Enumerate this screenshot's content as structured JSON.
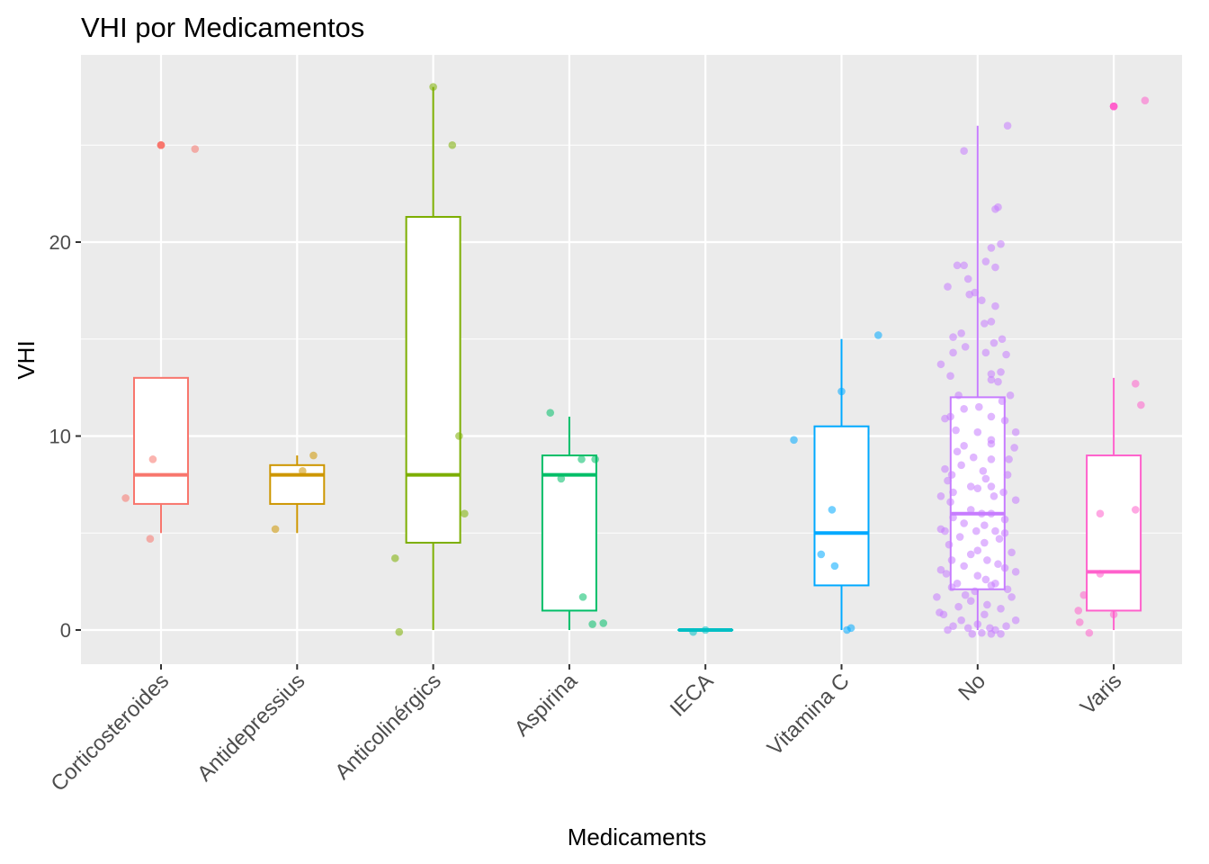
{
  "chart_data": {
    "type": "boxplot",
    "title": "VHI por Medicamentos",
    "xlabel": "Medicaments",
    "ylabel": "VHI",
    "ylim": [
      -1.7,
      29.5
    ],
    "yticks": [
      0,
      10,
      20
    ],
    "grid": true,
    "legend": "none",
    "categories": [
      "Corticosteroides",
      "Antidepressius",
      "Anticolinérgics",
      "Aspirina",
      "IECA",
      "Vitamina C",
      "No",
      "Varis"
    ],
    "series": [
      {
        "category": "Corticosteroides",
        "color": "#F8766D",
        "box": {
          "min": 5,
          "q1": 6.5,
          "median": 8,
          "q3": 13,
          "max": 13
        },
        "outliers": [
          25,
          25
        ],
        "points": [
          [
            -0.26,
            6.8
          ],
          [
            -0.08,
            4.7
          ],
          [
            -0.06,
            8.8
          ],
          [
            0.0,
            25.0
          ],
          [
            0.25,
            24.8
          ]
        ]
      },
      {
        "category": "Antidepressius",
        "color": "#CD9600",
        "box": {
          "min": 5,
          "q1": 6.5,
          "median": 8,
          "q3": 8.5,
          "max": 9
        },
        "outliers": [],
        "points": [
          [
            -0.16,
            5.2
          ],
          [
            0.04,
            8.2
          ],
          [
            0.12,
            9.0
          ]
        ]
      },
      {
        "category": "Anticolinérgics",
        "color": "#7CAE00",
        "box": {
          "min": 0,
          "q1": 4.5,
          "median": 8,
          "q3": 21.3,
          "max": 28
        },
        "outliers": [],
        "points": [
          [
            -0.28,
            3.7
          ],
          [
            -0.25,
            -0.1
          ],
          [
            0.0,
            28.0
          ],
          [
            0.14,
            25.0
          ],
          [
            0.19,
            10.0
          ],
          [
            0.23,
            6.0
          ]
        ]
      },
      {
        "category": "Aspirina",
        "color": "#00BE67",
        "box": {
          "min": 0,
          "q1": 1,
          "median": 8,
          "q3": 9,
          "max": 11
        },
        "outliers": [],
        "points": [
          [
            -0.14,
            11.2
          ],
          [
            -0.06,
            7.8
          ],
          [
            0.09,
            8.8
          ],
          [
            0.1,
            1.7
          ],
          [
            0.17,
            0.3
          ],
          [
            0.19,
            8.8
          ],
          [
            0.25,
            0.35
          ]
        ]
      },
      {
        "category": "IECA",
        "color": "#00BFC4",
        "box": {
          "min": 0,
          "q1": 0,
          "median": 0,
          "q3": 0,
          "max": 0
        },
        "outliers": [],
        "points": [
          [
            -0.09,
            -0.1
          ],
          [
            0.0,
            0.0
          ]
        ]
      },
      {
        "category": "Vitamina C",
        "color": "#00A9FF",
        "box": {
          "min": 0,
          "q1": 2.3,
          "median": 5,
          "q3": 10.5,
          "max": 15
        },
        "outliers": [],
        "points": [
          [
            -0.35,
            9.8
          ],
          [
            -0.15,
            3.9
          ],
          [
            -0.07,
            6.2
          ],
          [
            -0.05,
            3.3
          ],
          [
            0.0,
            12.3
          ],
          [
            0.04,
            0.0
          ],
          [
            0.07,
            0.1
          ],
          [
            0.27,
            15.2
          ]
        ]
      },
      {
        "category": "No",
        "color": "#C77CFF",
        "box": {
          "min": 0,
          "q1": 2.1,
          "median": 6,
          "q3": 12,
          "max": 26
        },
        "outliers": [],
        "points": [
          [
            -0.1,
            24.7
          ],
          [
            0.22,
            26.0
          ],
          [
            0.15,
            21.8
          ],
          [
            0.13,
            21.7
          ],
          [
            0.17,
            19.9
          ],
          [
            0.1,
            19.7
          ],
          [
            0.06,
            19.0
          ],
          [
            -0.15,
            18.8
          ],
          [
            -0.1,
            18.8
          ],
          [
            0.13,
            18.7
          ],
          [
            -0.07,
            18.1
          ],
          [
            -0.22,
            17.7
          ],
          [
            -0.02,
            17.4
          ],
          [
            -0.06,
            17.3
          ],
          [
            0.03,
            17.0
          ],
          [
            0.13,
            16.7
          ],
          [
            0.1,
            15.9
          ],
          [
            0.05,
            15.8
          ],
          [
            -0.12,
            15.3
          ],
          [
            -0.18,
            15.1
          ],
          [
            0.18,
            15.0
          ],
          [
            0.12,
            14.8
          ],
          [
            -0.09,
            14.6
          ],
          [
            -0.18,
            14.3
          ],
          [
            0.06,
            14.3
          ],
          [
            0.21,
            14.2
          ],
          [
            -0.27,
            13.7
          ],
          [
            0.1,
            13.2
          ],
          [
            0.17,
            13.3
          ],
          [
            -0.2,
            13.1
          ],
          [
            0.15,
            12.8
          ],
          [
            0.1,
            12.9
          ],
          [
            0.24,
            12.1
          ],
          [
            -0.14,
            12.1
          ],
          [
            0.18,
            11.8
          ],
          [
            0.01,
            11.5
          ],
          [
            -0.1,
            11.4
          ],
          [
            -0.2,
            11.0
          ],
          [
            0.1,
            11.0
          ],
          [
            0.2,
            10.8
          ],
          [
            -0.24,
            10.9
          ],
          [
            0.0,
            10.2
          ],
          [
            -0.16,
            10.3
          ],
          [
            0.28,
            10.2
          ],
          [
            0.1,
            9.8
          ],
          [
            -0.1,
            9.5
          ],
          [
            0.1,
            9.6
          ],
          [
            -0.15,
            9.2
          ],
          [
            0.27,
            9.4
          ],
          [
            0.1,
            8.8
          ],
          [
            -0.03,
            8.9
          ],
          [
            0.23,
            8.8
          ],
          [
            -0.12,
            8.5
          ],
          [
            -0.24,
            8.3
          ],
          [
            0.04,
            8.2
          ],
          [
            -0.19,
            8.0
          ],
          [
            0.22,
            8.0
          ],
          [
            0.06,
            7.8
          ],
          [
            -0.22,
            7.7
          ],
          [
            -0.05,
            7.4
          ],
          [
            0.0,
            7.3
          ],
          [
            0.1,
            7.4
          ],
          [
            -0.18,
            7.1
          ],
          [
            0.19,
            7.1
          ],
          [
            -0.27,
            6.9
          ],
          [
            0.12,
            6.9
          ],
          [
            0.28,
            6.7
          ],
          [
            -0.2,
            6.6
          ],
          [
            -0.05,
            6.2
          ],
          [
            0.03,
            6.0
          ],
          [
            0.1,
            6.0
          ],
          [
            -0.18,
            5.8
          ],
          [
            0.2,
            5.7
          ],
          [
            -0.1,
            5.5
          ],
          [
            0.05,
            5.4
          ],
          [
            -0.27,
            5.2
          ],
          [
            -0.24,
            5.1
          ],
          [
            -0.01,
            5.1
          ],
          [
            0.13,
            5.1
          ],
          [
            0.2,
            5.0
          ],
          [
            -0.13,
            4.8
          ],
          [
            0.16,
            4.7
          ],
          [
            -0.21,
            4.4
          ],
          [
            0.05,
            4.5
          ],
          [
            0.0,
            4.1
          ],
          [
            -0.05,
            3.9
          ],
          [
            0.25,
            4.0
          ],
          [
            -0.19,
            3.6
          ],
          [
            0.07,
            3.6
          ],
          [
            0.15,
            3.4
          ],
          [
            -0.1,
            3.3
          ],
          [
            0.2,
            3.2
          ],
          [
            -0.27,
            3.1
          ],
          [
            0.28,
            3.0
          ],
          [
            0.0,
            2.8
          ],
          [
            -0.23,
            2.9
          ],
          [
            0.06,
            2.6
          ],
          [
            -0.15,
            2.4
          ],
          [
            0.1,
            2.3
          ],
          [
            0.13,
            2.4
          ],
          [
            -0.19,
            2.2
          ],
          [
            0.22,
            2.1
          ],
          [
            -0.02,
            2.0
          ],
          [
            -0.09,
            1.8
          ],
          [
            0.25,
            1.7
          ],
          [
            -0.3,
            1.7
          ],
          [
            -0.05,
            1.5
          ],
          [
            0.07,
            1.3
          ],
          [
            -0.14,
            1.2
          ],
          [
            0.17,
            1.1
          ],
          [
            -0.25,
            0.8
          ],
          [
            -0.28,
            0.9
          ],
          [
            0.05,
            0.8
          ],
          [
            -0.12,
            0.5
          ],
          [
            0.28,
            0.5
          ],
          [
            0.0,
            0.3
          ],
          [
            -0.18,
            0.2
          ],
          [
            0.21,
            0.2
          ],
          [
            -0.07,
            0.1
          ],
          [
            0.09,
            0.1
          ],
          [
            0.13,
            0.0
          ],
          [
            -0.04,
            -0.2
          ],
          [
            0.17,
            -0.2
          ],
          [
            0.1,
            -0.2
          ],
          [
            -0.22,
            0.0
          ],
          [
            0.03,
            -0.15
          ]
        ]
      },
      {
        "category": "Varis",
        "color": "#FF61CC",
        "box": {
          "min": 0,
          "q1": 1,
          "median": 3,
          "q3": 9,
          "max": 13
        },
        "outliers": [
          27,
          27
        ],
        "points": [
          [
            -0.26,
            1.0
          ],
          [
            -0.22,
            1.8
          ],
          [
            -0.25,
            0.4
          ],
          [
            -0.18,
            -0.15
          ],
          [
            -0.1,
            2.9
          ],
          [
            -0.1,
            6.0
          ],
          [
            0.0,
            27.0
          ],
          [
            0.0,
            0.8
          ],
          [
            0.16,
            12.7
          ],
          [
            0.16,
            6.2
          ],
          [
            0.2,
            11.6
          ],
          [
            0.23,
            27.3
          ]
        ]
      }
    ]
  }
}
